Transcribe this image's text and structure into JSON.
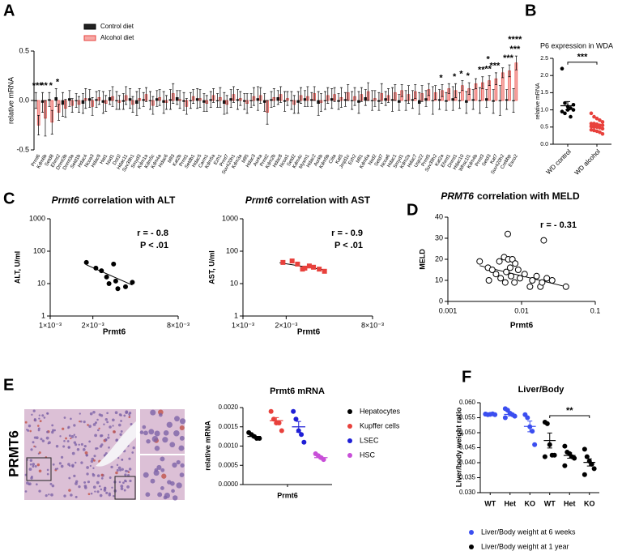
{
  "chart_data": [
    {
      "type": "bar",
      "panel": "A",
      "y_label": "relative mRNA",
      "legend": "top-left",
      "ylim": [
        -0.5,
        0.5
      ],
      "yticks": [
        {
          "value": -0.5,
          "label": "-0.5"
        },
        {
          "value": 0,
          "label": "0.0"
        },
        {
          "value": 0.5,
          "label": "0.5"
        }
      ],
      "categories": [
        "Prmt6",
        "Kdm6b",
        "Setd8",
        "Ehmt2",
        "Dnmt3b",
        "Dnmt3a",
        "Setd1b",
        "Hdac4",
        "Ncoa3",
        "Hdac9",
        "Hat1",
        "Nsd1",
        "Dot1l",
        "Hdac11",
        "Suv39h1",
        "Smyd3",
        "Kdm1a",
        "Kdm5c",
        "Kdm4a",
        "Hdac6",
        "Mll3",
        "Kat2b",
        "Prmt1",
        "Setdb1",
        "Hdac5",
        "Carm1",
        "Kdm5a",
        "Ezh1",
        "Prmt7",
        "Suv420h1",
        "Kdm3a",
        "Mll5",
        "Hdac3",
        "Aurka",
        "Prmt2",
        "Kdm2b",
        "Hdac8",
        "Ncoa1",
        "Setd2",
        "Kdm4c",
        "Mysm1",
        "Hdac2",
        "Aurkb",
        "Kdm5b",
        "Ciita",
        "Kat5",
        "Jmjd1c",
        "Ezh2",
        "Mll1",
        "Kdm6a",
        "Nsd2",
        "Setd7",
        "Ncoa6",
        "Hdac1",
        "Smyd1",
        "Kdm2a",
        "Hdac7",
        "Usp22",
        "Prmt5",
        "Suv39h2",
        "Kat2a",
        "Ehmt1",
        "Dnmt1",
        "Hdac10",
        "Whsc1l1",
        "Kdm4b",
        "Prmt3",
        "Setd3",
        "Kat7",
        "Suv420h2",
        "Crebbp",
        "Esco2"
      ],
      "series": [
        {
          "name": "Control diet",
          "color": "#000000",
          "fill": "#222222",
          "values": [
            0,
            -0.02,
            0.01,
            0.03,
            -0.04,
            0.02,
            0,
            -0.03,
            0.02,
            0.01,
            -0.02,
            0.03,
            0,
            -0.01,
            0.02,
            -0.03,
            0.01,
            0,
            0.02,
            -0.02,
            0.01,
            0.03,
            -0.01,
            0,
            0.02,
            -0.02,
            0.01,
            0,
            -0.03,
            0.02,
            0.01,
            -0.01,
            0,
            0.02,
            -0.02,
            0.01,
            0.03,
            -0.01,
            0,
            -0.02,
            0.02,
            0.01,
            -0.03,
            0,
            0.02,
            -0.01,
            0.01,
            0,
            -0.02,
            0.03,
            0,
            -0.01,
            0.02,
            0.01,
            -0.02,
            0,
            0.01,
            -0.03,
            0.02,
            0,
            0.01,
            -0.01,
            0.02,
            0,
            -0.02,
            0.01,
            0,
            0.02,
            -0.01,
            0,
            0.01,
            0
          ],
          "errors": [
            0.08,
            0.1,
            0.07,
            0.09,
            0.12,
            0.08,
            0.07,
            0.1,
            0.09,
            0.08,
            0.11,
            0.07,
            0.09,
            0.08,
            0.1,
            0.12,
            0.07,
            0.09,
            0.08,
            0.11,
            0.1,
            0.07,
            0.09,
            0.08,
            0.1,
            0.09,
            0.08,
            0.07,
            0.11,
            0.09,
            0.1,
            0.08,
            0.07,
            0.12,
            0.09,
            0.08,
            0.07,
            0.1,
            0.09,
            0.11,
            0.08,
            0.07,
            0.12,
            0.09,
            0.1,
            0.08,
            0.07,
            0.09,
            0.11,
            0.08,
            0.1,
            0.09,
            0.07,
            0.12,
            0.08,
            0.1,
            0.09,
            0.11,
            0.08,
            0.14,
            0.1,
            0.09,
            0.12,
            0.08,
            0.11,
            0.1,
            0.13,
            0.09,
            0.12,
            0.15,
            0.1,
            0.12
          ]
        },
        {
          "name": "Alcohol diet",
          "color": "#e8413c",
          "fill": "#f6a9a6",
          "values": [
            -0.25,
            -0.18,
            -0.22,
            -0.12,
            -0.08,
            -0.05,
            -0.04,
            0.02,
            -0.06,
            0.03,
            -0.03,
            0.04,
            -0.02,
            0.05,
            -0.04,
            0.02,
            0.06,
            -0.05,
            0.03,
            -0.02,
            0.07,
            0.01,
            -0.06,
            0.04,
            0.02,
            -0.03,
            0.05,
            0.03,
            -0.04,
            0.06,
            0.02,
            -0.03,
            0.04,
            0.05,
            -0.12,
            0.03,
            0.06,
            0.02,
            -0.04,
            0.05,
            0.04,
            0.07,
            -0.02,
            0.05,
            0.06,
            0.03,
            0.08,
            0.04,
            0.06,
            0.09,
            0.02,
            0.07,
            0.05,
            0.08,
            0.1,
            0.06,
            0.09,
            0.07,
            0.11,
            0.08,
            0.1,
            0.12,
            0.1,
            0.15,
            0.12,
            0.17,
            0.18,
            0.2,
            0.22,
            0.28,
            0.3,
            0.38
          ],
          "errors": [
            0.1,
            0.18,
            0.12,
            0.08,
            0.09,
            0.07,
            0.08,
            0.1,
            0.09,
            0.07,
            0.08,
            0.1,
            0.07,
            0.09,
            0.08,
            0.1,
            0.07,
            0.09,
            0.08,
            0.07,
            0.1,
            0.09,
            0.08,
            0.07,
            0.09,
            0.08,
            0.07,
            0.1,
            0.09,
            0.08,
            0.07,
            0.1,
            0.09,
            0.08,
            0.12,
            0.09,
            0.08,
            0.07,
            0.09,
            0.08,
            0.1,
            0.07,
            0.09,
            0.08,
            0.07,
            0.1,
            0.08,
            0.09,
            0.07,
            0.09,
            0.08,
            0.1,
            0.07,
            0.08,
            0.06,
            0.09,
            0.07,
            0.08,
            0.06,
            0.07,
            0.06,
            0.05,
            0.07,
            0.05,
            0.06,
            0.05,
            0.06,
            0.05,
            0.06,
            0.05,
            0.06,
            0.07
          ]
        }
      ],
      "annotations": [
        {
          "text": "***",
          "category": "Prmt6"
        },
        {
          "text": "**",
          "category": "Kdm6b"
        },
        {
          "text": "*",
          "category": "Setd8"
        },
        {
          "text": "*",
          "category": "Ehmt2"
        },
        {
          "text": "*",
          "category": "Kat2a"
        },
        {
          "text": "*",
          "category": "Dnmt1"
        },
        {
          "text": "*",
          "category": "Hdac10"
        },
        {
          "text": "*",
          "category": "Whsc1l1"
        },
        {
          "text": "**",
          "category": "Prmt3"
        },
        {
          "text": "**",
          "category": "Setd3"
        },
        {
          "text": "*",
          "category": "Setd3"
        },
        {
          "text": "***",
          "category": "Kat7"
        },
        {
          "text": "***",
          "category": "Crebbp"
        },
        {
          "text": "***",
          "category": "Esco2"
        },
        {
          "text": "****",
          "category": "Esco2"
        }
      ]
    },
    {
      "type": "strip",
      "panel": "B",
      "title": "P6 expression in WDA",
      "y_label": "relative mRNA",
      "ylim": [
        0,
        2.5
      ],
      "yticks": [
        {
          "value": 0,
          "label": "0.0"
        },
        {
          "value": 0.5,
          "label": "0.5"
        },
        {
          "value": 1,
          "label": "1.0"
        },
        {
          "value": 1.5,
          "label": "1.5"
        },
        {
          "value": 2,
          "label": "2.0"
        },
        {
          "value": 2.5,
          "label": "2.5"
        }
      ],
      "categories": [
        "WD control",
        "WD alcohol"
      ],
      "annotation": "***",
      "series": [
        {
          "color": "#000000",
          "values": [
            [
              2.2,
              1.2,
              1.1,
              1.05,
              1.0,
              0.95,
              0.9,
              1.0,
              0.8,
              1.15
            ],
            null
          ],
          "means": [
            1.12,
            null
          ],
          "sems": [
            0.12,
            null
          ]
        },
        {
          "color": "#e8413c",
          "values": [
            null,
            [
              0.9,
              0.8,
              0.75,
              0.7,
              0.65,
              0.6,
              0.6,
              0.58,
              0.55,
              0.55,
              0.52,
              0.5,
              0.5,
              0.48,
              0.45,
              0.42,
              0.4,
              0.38,
              0.35,
              0.3
            ]
          ],
          "means": [
            null,
            0.55
          ],
          "sems": [
            null,
            0.04
          ]
        }
      ]
    },
    {
      "type": "scatter",
      "panel": "C",
      "title_gene": "Prmt6",
      "title": "correlation with ALT",
      "x_label": "Prmt6",
      "y_label": "ALT, U/ml",
      "xscale": "log",
      "yscale": "log",
      "xlim": [
        0.001,
        0.008
      ],
      "ylim": [
        1,
        1000
      ],
      "xticks": [
        {
          "value": 0.001,
          "label": "1×10⁻³"
        },
        {
          "value": 0.002,
          "label": "2×10⁻³"
        },
        {
          "value": 0.008,
          "label": "8×10⁻³"
        }
      ],
      "yticks": [
        1,
        10,
        100,
        1000
      ],
      "marker": "circle",
      "color": "#000000",
      "x": [
        0.0018,
        0.0021,
        0.0023,
        0.0025,
        0.0026,
        0.0028,
        0.0029,
        0.003,
        0.0034,
        0.0038
      ],
      "y": [
        45,
        30,
        25,
        16,
        10,
        40,
        12,
        7,
        8,
        11
      ],
      "trendline": {
        "x": [
          0.0018,
          0.0038
        ],
        "y": [
          38,
          9
        ]
      },
      "stats": [
        "r = - 0.8",
        "P < .01"
      ]
    },
    {
      "type": "scatter",
      "title_gene": "Prmt6",
      "title": "correlation with AST",
      "x_label": "Prmt6",
      "y_label": "AST, U/ml",
      "xscale": "log",
      "yscale": "log",
      "xlim": [
        0.001,
        0.008
      ],
      "ylim": [
        1,
        1000
      ],
      "xticks": [
        {
          "value": 0.001,
          "label": "1×10⁻³"
        },
        {
          "value": 0.002,
          "label": "2×10⁻³"
        },
        {
          "value": 0.008,
          "label": "8×10⁻³"
        }
      ],
      "yticks": [
        1,
        10,
        100,
        1000
      ],
      "marker": "square",
      "color": "#e8413c",
      "x": [
        0.0019,
        0.0022,
        0.0024,
        0.0026,
        0.0027,
        0.0029,
        0.0031,
        0.0034,
        0.0037
      ],
      "y": [
        45,
        50,
        40,
        28,
        30,
        35,
        32,
        28,
        24
      ],
      "trendline": {
        "x": [
          0.0018,
          0.0038
        ],
        "y": [
          44,
          26
        ]
      },
      "stats": [
        "r = - 0.9",
        "P < .01"
      ]
    },
    {
      "type": "scatter",
      "panel": "D",
      "title_gene": "PRMT6",
      "title": "correlation with MELD",
      "x_label": "Prmt6",
      "y_label": "MELD",
      "xscale": "log",
      "xlim": [
        0.001,
        0.1
      ],
      "ylim": [
        0,
        40
      ],
      "xticks": [
        0.001,
        0.01,
        0.1
      ],
      "yticks": [
        0,
        10,
        20,
        30,
        40
      ],
      "marker": "open-circle",
      "color": "#000000",
      "x": [
        0.0027,
        0.0035,
        0.004,
        0.0036,
        0.0045,
        0.005,
        0.0052,
        0.0058,
        0.006,
        0.0062,
        0.0065,
        0.0066,
        0.007,
        0.0072,
        0.0075,
        0.008,
        0.0082,
        0.009,
        0.0095,
        0.011,
        0.013,
        0.014,
        0.016,
        0.018,
        0.019,
        0.02,
        0.022,
        0.026,
        0.04
      ],
      "y": [
        19,
        16,
        15,
        10,
        13,
        19,
        11,
        21,
        9,
        14,
        32,
        20,
        16,
        12,
        20,
        9,
        18,
        15,
        11,
        13,
        7,
        10,
        12,
        7,
        9,
        29,
        11,
        10,
        7
      ],
      "trendline": {
        "x": [
          0.0027,
          0.04
        ],
        "y": [
          17,
          7
        ]
      },
      "stats": [
        "r = - 0.31"
      ]
    },
    {
      "type": "strip",
      "panel": "E",
      "image_label": "PRMT6",
      "title": "Prmt6 mRNA",
      "y_label": "relative mRNA",
      "legend": "right",
      "ylim": [
        0,
        0.002
      ],
      "yticks": [
        {
          "value": 0,
          "label": "0.0000"
        },
        {
          "value": 0.0005,
          "label": "0.0005"
        },
        {
          "value": 0.001,
          "label": "0.0010"
        },
        {
          "value": 0.0015,
          "label": "0.0015"
        },
        {
          "value": 0.002,
          "label": "0.0020"
        }
      ],
      "categories": [
        "Prmt6"
      ],
      "series": [
        {
          "name": "Hepatocytes",
          "color": "#000000",
          "values": [
            [
              0.00135,
              0.0013,
              0.00125,
              0.0012,
              0.0012
            ]
          ],
          "means": [
            0.00125
          ],
          "sems": [
            3e-05
          ]
        },
        {
          "name": "Kupffer cells",
          "color": "#e8413c",
          "values": [
            [
              0.0019,
              0.0017,
              0.0016,
              0.0016,
              0.0014
            ]
          ],
          "means": [
            0.00166
          ],
          "sems": [
            8e-05
          ]
        },
        {
          "name": "LSEC",
          "color": "#1f1fd6",
          "values": [
            [
              0.0019,
              0.0017,
              0.0014,
              0.0013,
              0.0011
            ]
          ],
          "means": [
            0.0015
          ],
          "sems": [
            0.00014
          ]
        },
        {
          "name": "HSC",
          "color": "#c84fd8",
          "values": [
            [
              0.0008,
              0.00075,
              0.0007,
              0.00065
            ]
          ],
          "means": [
            0.0007
          ],
          "sems": [
            3e-05
          ]
        }
      ]
    },
    {
      "type": "strip",
      "panel": "F",
      "title": "Liver/Body",
      "y_label": "Liver/body weight ratio",
      "legend": "bottom",
      "ylim": [
        0.03,
        0.06
      ],
      "yticks": [
        {
          "value": 0.03,
          "label": "0.030"
        },
        {
          "value": 0.035,
          "label": "0.035"
        },
        {
          "value": 0.04,
          "label": "0.040"
        },
        {
          "value": 0.045,
          "label": "0.045"
        },
        {
          "value": 0.05,
          "label": "0.050"
        },
        {
          "value": 0.055,
          "label": "0.055"
        },
        {
          "value": 0.06,
          "label": "0.060"
        }
      ],
      "categories": [
        "WT",
        "Het",
        "KO",
        "WT",
        "Het",
        "KO"
      ],
      "series": [
        {
          "name": "Liver/Body weight at 6 weeks",
          "color": "#3b4ef0",
          "values": [
            [
              0.0562,
              0.056,
              0.0561,
              0.0563,
              0.056,
              0.0562
            ],
            [
              0.058,
              0.0575,
              0.0565,
              0.056,
              0.0555,
              0.055
            ],
            [
              0.056,
              0.055,
              0.052,
              0.0505,
              0.046
            ],
            null,
            null,
            null
          ],
          "means": [
            0.0561,
            0.0561,
            0.0521,
            null,
            null,
            null
          ],
          "sems": [
            0.0001,
            0.0005,
            0.0018,
            null,
            null,
            null
          ]
        },
        {
          "name": "Liver/Body weight at 1 year",
          "color": "#000000",
          "annotation": "**",
          "values": [
            null,
            null,
            null,
            [
              0.0535,
              0.053,
              0.046,
              0.0425,
              0.0425,
              0.042
            ],
            [
              0.0455,
              0.0435,
              0.043,
              0.042,
              0.0415,
              0.039
            ],
            [
              0.0445,
              0.042,
              0.0405,
              0.0395,
              0.038,
              0.036
            ]
          ],
          "means": [
            null,
            null,
            null,
            0.0474,
            0.0424,
            0.0401
          ],
          "sems": [
            null,
            null,
            null,
            0.0025,
            0.0009,
            0.0012
          ]
        }
      ]
    }
  ]
}
